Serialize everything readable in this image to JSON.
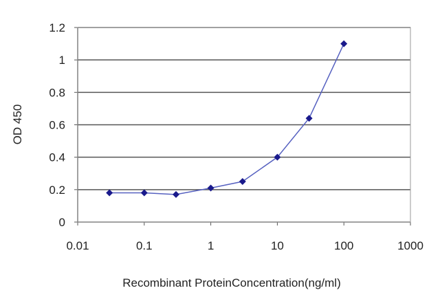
{
  "chart_data": {
    "type": "line",
    "title": "",
    "xlabel": "Recombinant ProteinConcentration(ng/ml)",
    "ylabel": "OD 450",
    "xscale": "log",
    "xlim": [
      0.01,
      1000
    ],
    "ylim": [
      0,
      1.2
    ],
    "xticks": [
      "0.01",
      "0.1",
      "1",
      "10",
      "100",
      "1000"
    ],
    "yticks": [
      "0",
      "0.2",
      "0.4",
      "0.6",
      "0.8",
      "1",
      "1.2"
    ],
    "grid": true,
    "legend": "none",
    "series": [
      {
        "name": "OD 450",
        "color": "#1a1a8c",
        "x": [
          0.03,
          0.1,
          0.3,
          1,
          3,
          10,
          30,
          100
        ],
        "y": [
          0.18,
          0.18,
          0.17,
          0.21,
          0.25,
          0.4,
          0.64,
          1.1
        ]
      }
    ]
  }
}
